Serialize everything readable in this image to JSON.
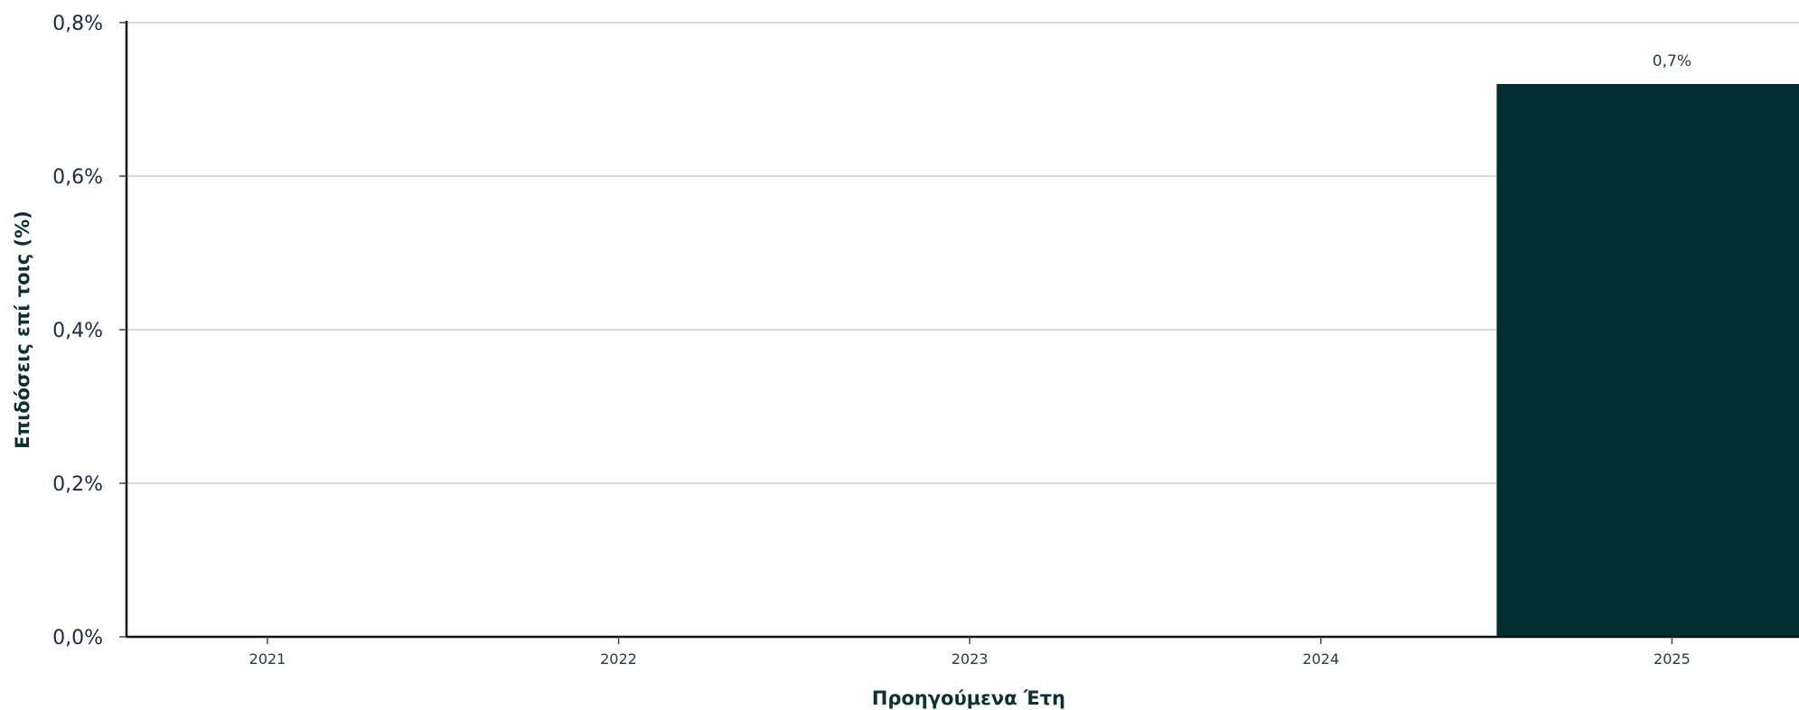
{
  "chart_data": {
    "type": "bar",
    "categories": [
      "2021",
      "2022",
      "2023",
      "2024",
      "2025"
    ],
    "values": [
      0,
      0,
      0,
      0,
      0.72
    ],
    "data_labels": [
      "",
      "",
      "",
      "",
      "0,7%"
    ],
    "xlabel": "Προηγούμενα Έτη",
    "ylabel": "Επιδόσεις επί τοις (%)",
    "ylim": [
      0,
      0.8
    ],
    "y_ticks": [
      0,
      0.2,
      0.4,
      0.6,
      0.8
    ],
    "y_tick_labels": [
      "0,0%",
      "0,2%",
      "0,4%",
      "0,6%",
      "0,8%"
    ],
    "grid": true,
    "legend": "none",
    "colors": {
      "bar": "#032e31"
    }
  }
}
